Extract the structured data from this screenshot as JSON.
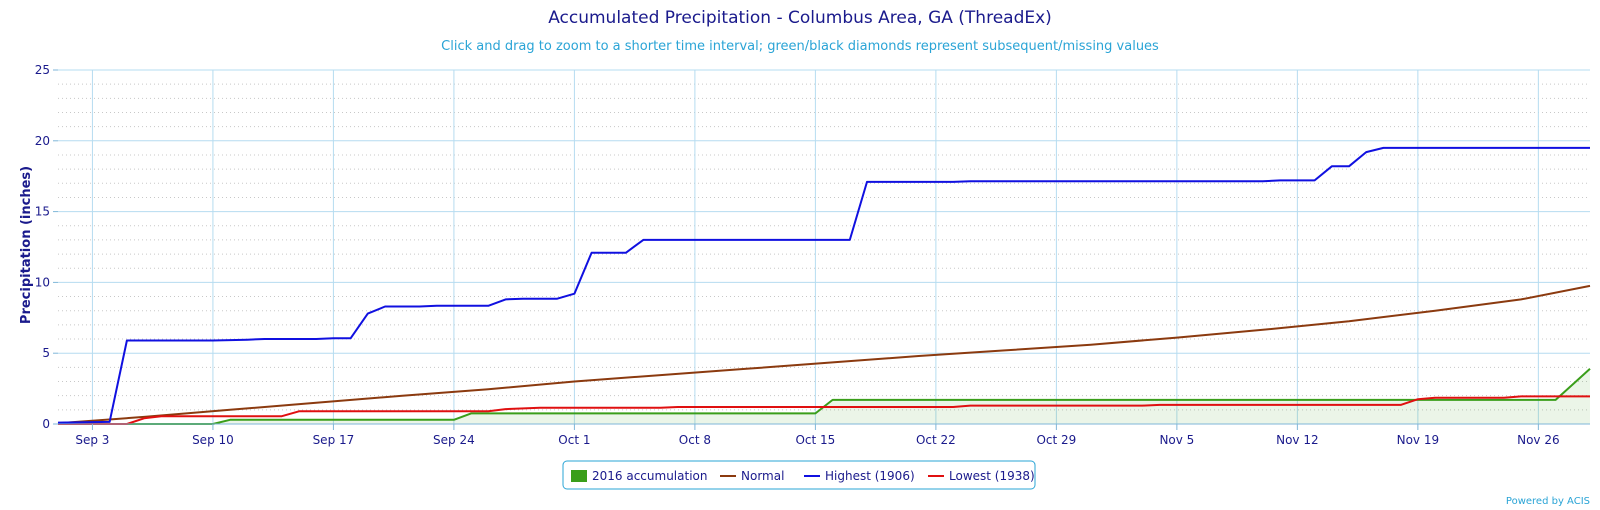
{
  "chart_data": {
    "type": "line",
    "title": "Accumulated Precipitation - Columbus Area, GA (ThreadEx)",
    "subtitle": "Click and drag to zoom to a shorter time interval; green/black diamonds represent subsequent/missing values",
    "ylabel": "Precipitation (inches)",
    "xlabel": "",
    "ylim": [
      0,
      25
    ],
    "yticks": [
      0,
      5,
      10,
      15,
      20,
      25
    ],
    "x_start": "Sep 1",
    "x_end": "Nov 29",
    "xticks": [
      {
        "label": "Sep 3",
        "day": 2
      },
      {
        "label": "Sep 10",
        "day": 9
      },
      {
        "label": "Sep 17",
        "day": 16
      },
      {
        "label": "Sep 24",
        "day": 23
      },
      {
        "label": "Oct 1",
        "day": 30
      },
      {
        "label": "Oct 8",
        "day": 37
      },
      {
        "label": "Oct 15",
        "day": 44
      },
      {
        "label": "Oct 22",
        "day": 51
      },
      {
        "label": "Oct 29",
        "day": 58
      },
      {
        "label": "Nov 5",
        "day": 65
      },
      {
        "label": "Nov 12",
        "day": 72
      },
      {
        "label": "Nov 19",
        "day": 79
      },
      {
        "label": "Nov 26",
        "day": 86
      }
    ],
    "grid": true,
    "legend_position": "bottom-center",
    "series": [
      {
        "name": "2016 accumulation",
        "color": "#3a9e1a",
        "fill": "area",
        "points": [
          [
            0,
            0.0
          ],
          [
            9,
            0.0
          ],
          [
            10,
            0.3
          ],
          [
            23,
            0.3
          ],
          [
            24,
            0.75
          ],
          [
            44,
            0.75
          ],
          [
            45,
            1.7
          ],
          [
            84,
            1.7
          ],
          [
            87,
            1.7
          ],
          [
            89,
            3.9
          ]
        ]
      },
      {
        "name": "Normal",
        "color": "#8b3a0f",
        "points": [
          [
            0,
            0.05
          ],
          [
            5,
            0.5
          ],
          [
            10,
            1.0
          ],
          [
            15,
            1.5
          ],
          [
            20,
            2.0
          ],
          [
            25,
            2.45
          ],
          [
            30,
            3.0
          ],
          [
            35,
            3.45
          ],
          [
            40,
            3.9
          ],
          [
            45,
            4.35
          ],
          [
            50,
            4.8
          ],
          [
            55,
            5.2
          ],
          [
            60,
            5.6
          ],
          [
            65,
            6.1
          ],
          [
            70,
            6.65
          ],
          [
            75,
            7.25
          ],
          [
            80,
            8.0
          ],
          [
            85,
            8.8
          ],
          [
            89,
            9.75
          ]
        ]
      },
      {
        "name": "Highest (1906)",
        "color": "#1010e0",
        "points": [
          [
            0,
            0.1
          ],
          [
            3,
            0.15
          ],
          [
            4,
            5.9
          ],
          [
            9,
            5.9
          ],
          [
            11,
            5.95
          ],
          [
            12,
            6.0
          ],
          [
            15,
            6.0
          ],
          [
            16,
            6.05
          ],
          [
            17,
            6.05
          ],
          [
            18,
            7.8
          ],
          [
            19,
            8.3
          ],
          [
            21,
            8.3
          ],
          [
            22,
            8.35
          ],
          [
            25,
            8.35
          ],
          [
            26,
            8.8
          ],
          [
            27,
            8.85
          ],
          [
            29,
            8.85
          ],
          [
            30,
            9.2
          ],
          [
            31,
            12.1
          ],
          [
            33,
            12.1
          ],
          [
            34,
            13.0
          ],
          [
            46,
            13.0
          ],
          [
            47,
            17.1
          ],
          [
            52,
            17.1
          ],
          [
            53,
            17.15
          ],
          [
            70,
            17.15
          ],
          [
            71,
            17.2
          ],
          [
            73,
            17.2
          ],
          [
            74,
            18.2
          ],
          [
            75,
            18.2
          ],
          [
            76,
            19.2
          ],
          [
            77,
            19.5
          ],
          [
            89,
            19.5
          ]
        ]
      },
      {
        "name": "Lowest (1938)",
        "color": "#e01010",
        "points": [
          [
            0,
            0.0
          ],
          [
            4,
            0.0
          ],
          [
            5,
            0.4
          ],
          [
            6,
            0.55
          ],
          [
            13,
            0.55
          ],
          [
            14,
            0.9
          ],
          [
            25,
            0.9
          ],
          [
            26,
            1.05
          ],
          [
            28,
            1.15
          ],
          [
            35,
            1.15
          ],
          [
            36,
            1.2
          ],
          [
            44,
            1.2
          ],
          [
            45,
            1.2
          ],
          [
            52,
            1.2
          ],
          [
            53,
            1.3
          ],
          [
            63,
            1.3
          ],
          [
            64,
            1.35
          ],
          [
            78,
            1.35
          ],
          [
            79,
            1.75
          ],
          [
            80,
            1.85
          ],
          [
            84,
            1.85
          ],
          [
            85,
            1.95
          ],
          [
            89,
            1.95
          ]
        ]
      }
    ],
    "credits": "Powered by ACIS"
  }
}
